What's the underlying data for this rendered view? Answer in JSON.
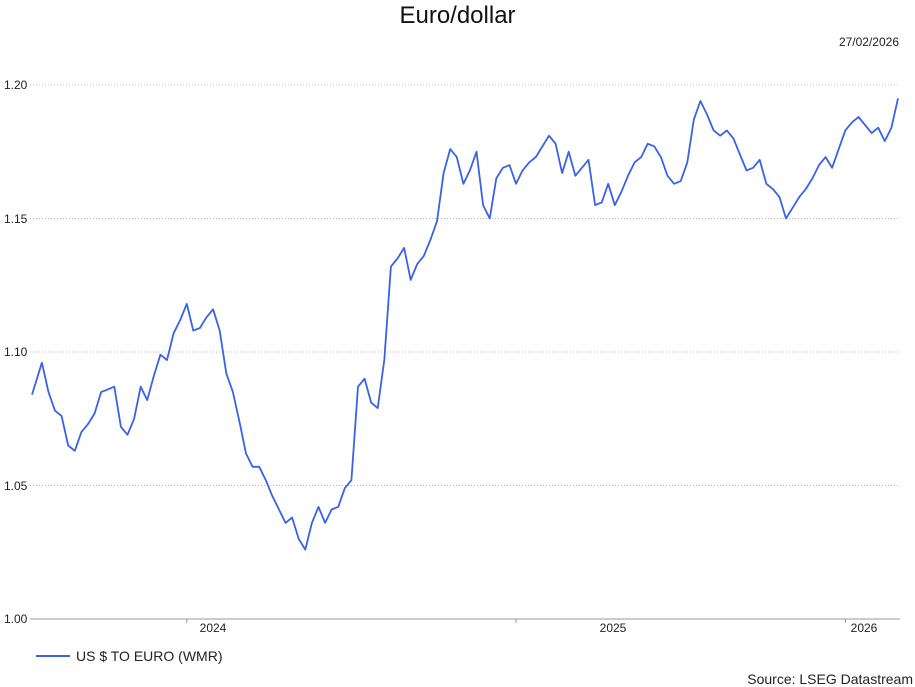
{
  "chart_data": {
    "type": "line",
    "title": "Euro/dollar",
    "date_label": "27/02/2026",
    "source": "Source: LSEG Datastream",
    "ylim": [
      1.0,
      1.2
    ],
    "yticks": [
      "1.20",
      "1.15",
      "1.10",
      "1.05",
      "1.00"
    ],
    "ytick_values": [
      1.2,
      1.15,
      1.1,
      1.05,
      1.0
    ],
    "xticks": [
      "2024",
      "2025",
      "2026"
    ],
    "xtick_years": [
      2024.0,
      2025.0,
      2026.0
    ],
    "xlim": [
      2023.53,
      2026.16
    ],
    "grid": "horizontal-dotted",
    "legend_position": "bottom-left",
    "color": "#3a62e6",
    "series": [
      {
        "name": "US $ TO EURO (WMR)",
        "x": [
          2023.53,
          2023.56,
          2023.58,
          2023.6,
          2023.62,
          2023.64,
          2023.66,
          2023.68,
          2023.7,
          2023.72,
          2023.74,
          2023.76,
          2023.78,
          2023.8,
          2023.82,
          2023.84,
          2023.86,
          2023.88,
          2023.9,
          2023.92,
          2023.94,
          2023.96,
          2023.98,
          2024.0,
          2024.02,
          2024.04,
          2024.06,
          2024.08,
          2024.1,
          2024.12,
          2024.14,
          2024.16,
          2024.18,
          2024.2,
          2024.22,
          2024.24,
          2024.26,
          2024.28,
          2024.3,
          2024.32,
          2024.34,
          2024.36,
          2024.38,
          2024.4,
          2024.42,
          2024.44,
          2024.46,
          2024.48,
          2024.5,
          2024.52,
          2024.54,
          2024.56,
          2024.58,
          2024.6,
          2024.62,
          2024.64,
          2024.66,
          2024.68,
          2024.7,
          2024.72,
          2024.74,
          2024.76,
          2024.78,
          2024.8,
          2024.82,
          2024.84,
          2024.86,
          2024.88,
          2024.9,
          2024.92,
          2024.94,
          2024.96,
          2024.98,
          2025.0,
          2025.02,
          2025.04,
          2025.06,
          2025.08,
          2025.1,
          2025.12,
          2025.14,
          2025.16,
          2025.18,
          2025.2,
          2025.22,
          2025.24,
          2025.26,
          2025.28,
          2025.3,
          2025.32,
          2025.34,
          2025.36,
          2025.38,
          2025.4,
          2025.42,
          2025.44,
          2025.46,
          2025.48,
          2025.5,
          2025.52,
          2025.54,
          2025.56,
          2025.58,
          2025.6,
          2025.62,
          2025.64,
          2025.66,
          2025.68,
          2025.7,
          2025.72,
          2025.74,
          2025.76,
          2025.78,
          2025.8,
          2025.82,
          2025.84,
          2025.86,
          2025.88,
          2025.9,
          2025.92,
          2025.94,
          2025.96,
          2025.98,
          2026.0,
          2026.02,
          2026.04,
          2026.06,
          2026.08,
          2026.1,
          2026.12,
          2026.14,
          2026.16
        ],
        "values": [
          1.084,
          1.096,
          1.085,
          1.078,
          1.076,
          1.065,
          1.063,
          1.07,
          1.073,
          1.077,
          1.085,
          1.086,
          1.087,
          1.072,
          1.069,
          1.075,
          1.087,
          1.082,
          1.091,
          1.099,
          1.097,
          1.107,
          1.112,
          1.118,
          1.108,
          1.109,
          1.113,
          1.116,
          1.108,
          1.092,
          1.085,
          1.074,
          1.062,
          1.057,
          1.057,
          1.052,
          1.046,
          1.041,
          1.036,
          1.038,
          1.03,
          1.026,
          1.036,
          1.042,
          1.036,
          1.041,
          1.042,
          1.049,
          1.052,
          1.087,
          1.09,
          1.081,
          1.079,
          1.097,
          1.132,
          1.135,
          1.139,
          1.127,
          1.133,
          1.136,
          1.142,
          1.149,
          1.167,
          1.176,
          1.173,
          1.163,
          1.168,
          1.175,
          1.155,
          1.15,
          1.165,
          1.169,
          1.17,
          1.163,
          1.168,
          1.171,
          1.173,
          1.177,
          1.181,
          1.178,
          1.167,
          1.175,
          1.166,
          1.169,
          1.172,
          1.155,
          1.156,
          1.163,
          1.155,
          1.16,
          1.166,
          1.171,
          1.173,
          1.178,
          1.177,
          1.173,
          1.166,
          1.163,
          1.164,
          1.171,
          1.187,
          1.194,
          1.189,
          1.183,
          1.181,
          1.183,
          1.18,
          1.174,
          1.168,
          1.169,
          1.172,
          1.163,
          1.161,
          1.158,
          1.15,
          1.154,
          1.158,
          1.161,
          1.165,
          1.17,
          1.173,
          1.169,
          1.176,
          1.183,
          1.186,
          1.188,
          1.185,
          1.182,
          1.184,
          1.179,
          1.184,
          1.195
        ],
        "color": "#3a62e6"
      }
    ]
  }
}
